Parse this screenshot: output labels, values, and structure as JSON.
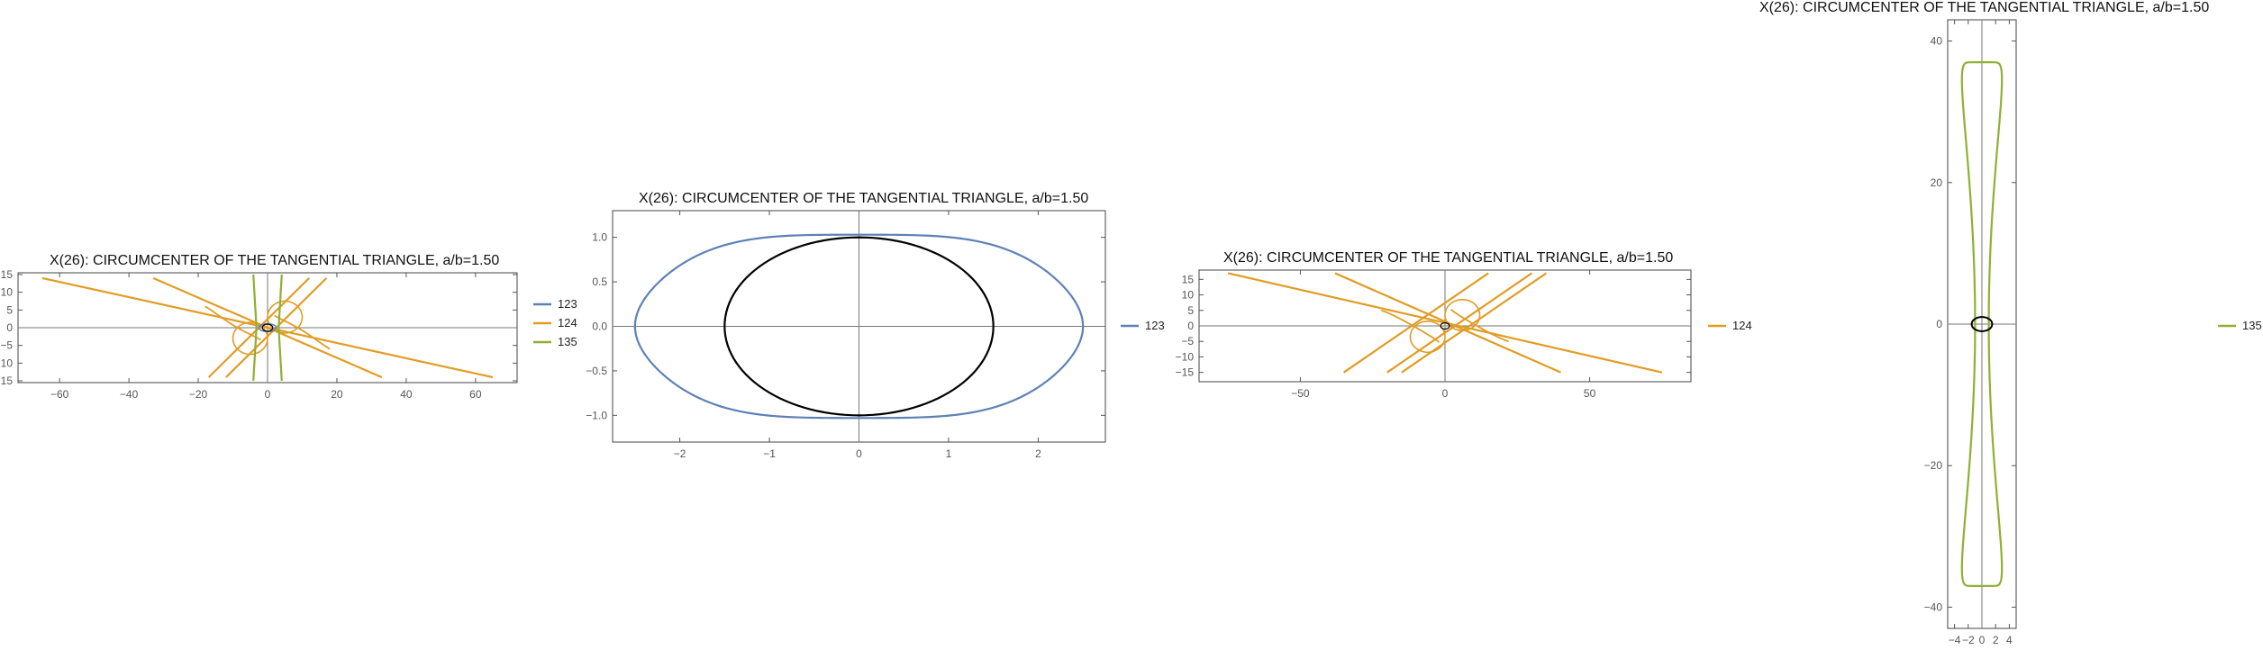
{
  "chart_data": [
    {
      "type": "line",
      "title": "X(26): CIRCUMCENTER OF THE TANGENTIAL TRIANGLE, a/b=1.50",
      "xlim": [
        -72,
        72
      ],
      "ylim": [
        -15.5,
        15.5
      ],
      "x_ticks": [
        -60,
        -40,
        -20,
        0,
        20,
        40,
        60
      ],
      "y_ticks": [
        -15,
        -10,
        -5,
        0,
        5,
        10,
        15
      ],
      "legend": [
        "123",
        "124",
        "135"
      ],
      "legend_position": "right",
      "series": [
        {
          "name": "123",
          "color": "#5e81b5",
          "curves": "small-closed-curve-near-origin"
        },
        {
          "name": "124",
          "color": "#e19c24",
          "curves": "tangent-lines-and-cusped-branches"
        },
        {
          "name": "135",
          "color": "#8fb032",
          "curves": "near-vertical-branches"
        }
      ],
      "reference": {
        "name": "ellipse",
        "a": 1.5,
        "b": 1,
        "color": "#000000"
      }
    },
    {
      "type": "line",
      "title": "X(26): CIRCUMCENTER OF THE TANGENTIAL TRIANGLE, a/b=1.50",
      "xlim": [
        -2.75,
        2.75
      ],
      "ylim": [
        -1.3,
        1.3
      ],
      "x_ticks": [
        -2,
        -1,
        0,
        1,
        2
      ],
      "y_ticks": [
        -1.0,
        -0.5,
        0.0,
        0.5,
        1.0
      ],
      "legend": [
        "123"
      ],
      "legend_position": "right",
      "series": [
        {
          "name": "123",
          "color": "#5e81b5",
          "x_extent": [
            -2.5,
            2.5
          ],
          "y_at_center": 1.05,
          "y_max": 1.14,
          "y_max_at_x": 1.0
        }
      ],
      "reference": {
        "name": "ellipse",
        "a": 1.5,
        "b": 1,
        "color": "#000000"
      }
    },
    {
      "type": "line",
      "title": "X(26): CIRCUMCENTER OF THE TANGENTIAL TRIANGLE, a/b=1.50",
      "xlim": [
        -85,
        85
      ],
      "ylim": [
        -18,
        18
      ],
      "x_ticks": [
        -50,
        0,
        50
      ],
      "y_ticks": [
        -15,
        -10,
        -5,
        0,
        5,
        10,
        15
      ],
      "legend": [
        "124"
      ],
      "legend_position": "right",
      "series": [
        {
          "name": "124",
          "color": "#e19c24",
          "curves": "tangent-lines-and-cusped-branches"
        }
      ],
      "reference": {
        "name": "ellipse",
        "a": 1.5,
        "b": 1,
        "color": "#000000"
      }
    },
    {
      "type": "line",
      "title": "X(26): CIRCUMCENTER OF THE TANGENTIAL TRIANGLE, a/b=1.50",
      "xlim": [
        -5,
        5
      ],
      "ylim": [
        -43,
        43
      ],
      "x_ticks": [
        -4,
        -2,
        0,
        2,
        4
      ],
      "y_ticks": [
        -40,
        -20,
        0,
        20,
        40
      ],
      "legend": [
        "135"
      ],
      "legend_position": "right",
      "series": [
        {
          "name": "135",
          "color": "#8fb032",
          "y_extent": [
            -37,
            37
          ],
          "x_max": 4.0,
          "x_at_center": 1.0
        }
      ],
      "reference": {
        "name": "ellipse",
        "a": 1.5,
        "b": 1,
        "color": "#000000"
      }
    }
  ]
}
